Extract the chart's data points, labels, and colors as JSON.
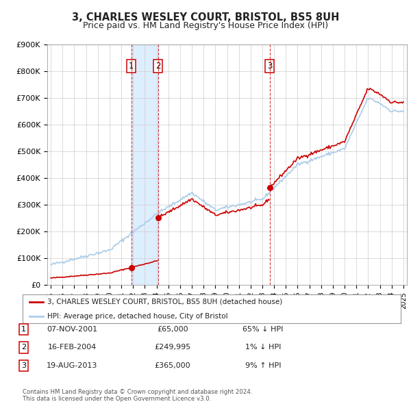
{
  "title": "3, CHARLES WESLEY COURT, BRISTOL, BS5 8UH",
  "subtitle": "Price paid vs. HM Land Registry's House Price Index (HPI)",
  "ylim": [
    0,
    900000
  ],
  "ytick_labels": [
    "£0",
    "£100K",
    "£200K",
    "£300K",
    "£400K",
    "£500K",
    "£600K",
    "£700K",
    "£800K",
    "£900K"
  ],
  "ytick_values": [
    0,
    100000,
    200000,
    300000,
    400000,
    500000,
    600000,
    700000,
    800000,
    900000
  ],
  "hpi_color": "#aacce8",
  "price_color": "#cc0000",
  "sale_marker_color": "#cc0000",
  "shading_color": "#ddeeff",
  "sales": [
    {
      "label": "1",
      "date": 2001.85,
      "price": 65000
    },
    {
      "label": "2",
      "date": 2004.12,
      "price": 249995
    },
    {
      "label": "3",
      "date": 2013.63,
      "price": 365000
    }
  ],
  "table_rows": [
    {
      "num": "1",
      "date": "07-NOV-2001",
      "price": "£65,000",
      "change": "65% ↓ HPI"
    },
    {
      "num": "2",
      "date": "16-FEB-2004",
      "price": "£249,995",
      "change": "1% ↓ HPI"
    },
    {
      "num": "3",
      "date": "19-AUG-2013",
      "price": "£365,000",
      "change": "9% ↑ HPI"
    }
  ],
  "legend_label_price": "3, CHARLES WESLEY COURT, BRISTOL, BS5 8UH (detached house)",
  "legend_label_hpi": "HPI: Average price, detached house, City of Bristol",
  "footer": "Contains HM Land Registry data © Crown copyright and database right 2024.\nThis data is licensed under the Open Government Licence v3.0.",
  "background_color": "#ffffff",
  "grid_color": "#cccccc",
  "xlim_left": 1994.7,
  "xlim_right": 2025.3
}
